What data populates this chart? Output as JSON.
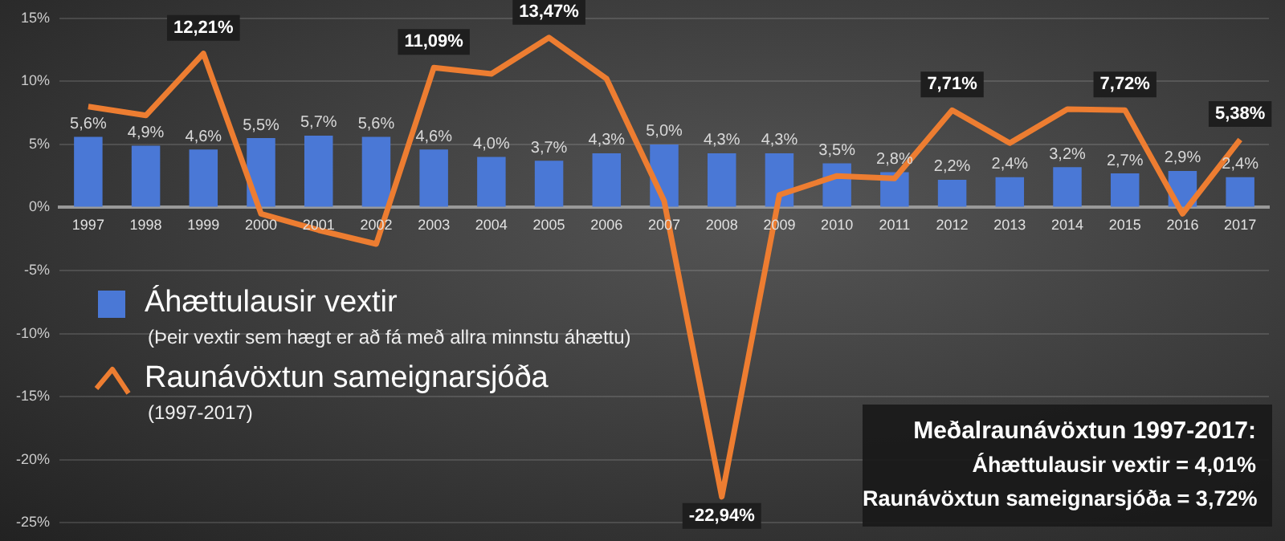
{
  "chart_data": {
    "type": "bar",
    "categories": [
      "1997",
      "1998",
      "1999",
      "2000",
      "2001",
      "2002",
      "2003",
      "2004",
      "2005",
      "2006",
      "2007",
      "2008",
      "2009",
      "2010",
      "2011",
      "2012",
      "2013",
      "2014",
      "2015",
      "2016",
      "2017"
    ],
    "series": [
      {
        "name": "Áhættulausir vextir",
        "color": "#4a78d6",
        "values": [
          5.6,
          4.9,
          4.6,
          5.5,
          5.7,
          5.6,
          4.6,
          4.0,
          3.7,
          4.3,
          5.0,
          4.3,
          4.3,
          3.5,
          2.8,
          2.2,
          2.4,
          3.2,
          2.7,
          2.9,
          2.4
        ],
        "value_labels": [
          "5,6%",
          "4,9%",
          "4,6%",
          "5,5%",
          "5,7%",
          "5,6%",
          "4,6%",
          "4,0%",
          "3,7%",
          "4,3%",
          "5,0%",
          "4,3%",
          "4,3%",
          "3,5%",
          "2,8%",
          "2,2%",
          "2,4%",
          "3,2%",
          "2,7%",
          "2,9%",
          "2,4%"
        ]
      },
      {
        "name": "Raunávöxtun sameignarsjóða",
        "type": "line",
        "color": "#ed7d31",
        "values": [
          8.0,
          7.3,
          12.21,
          -0.5,
          -1.8,
          -2.9,
          11.09,
          10.6,
          13.47,
          10.2,
          0.5,
          -22.94,
          1.0,
          2.5,
          2.3,
          7.71,
          5.1,
          7.8,
          7.72,
          -0.5,
          5.38
        ],
        "value_labels": [
          null,
          null,
          "12,21%",
          null,
          null,
          null,
          "11,09%",
          null,
          "13,47%",
          null,
          null,
          "-22,94%",
          null,
          null,
          null,
          "7,71%",
          null,
          null,
          "7,72%",
          null,
          "5,38%"
        ]
      }
    ],
    "ylim": [
      -25,
      15
    ],
    "yticks": [
      {
        "value": -25,
        "label": "-25%"
      },
      {
        "value": -20,
        "label": "-20%"
      },
      {
        "value": -15,
        "label": "-15%"
      },
      {
        "value": -10,
        "label": "-10%"
      },
      {
        "value": -5,
        "label": "-5%"
      },
      {
        "value": 0,
        "label": "0%"
      },
      {
        "value": 5,
        "label": "5%"
      },
      {
        "value": 10,
        "label": "10%"
      },
      {
        "value": 15,
        "label": "15%"
      }
    ],
    "grid": "y",
    "legend": "left",
    "line_style": "solid",
    "marker": "none",
    "annotations": [
      "(Þeir vextir sem hægt er að fá með allra minnstu áhættu)",
      "(1997-2017)",
      "Meðalraunávöxtun 1997-2017:",
      "Áhættulausir vextir = 4,01%",
      "Raunávöxtun sameignarsjóða = 3,72%"
    ]
  }
}
